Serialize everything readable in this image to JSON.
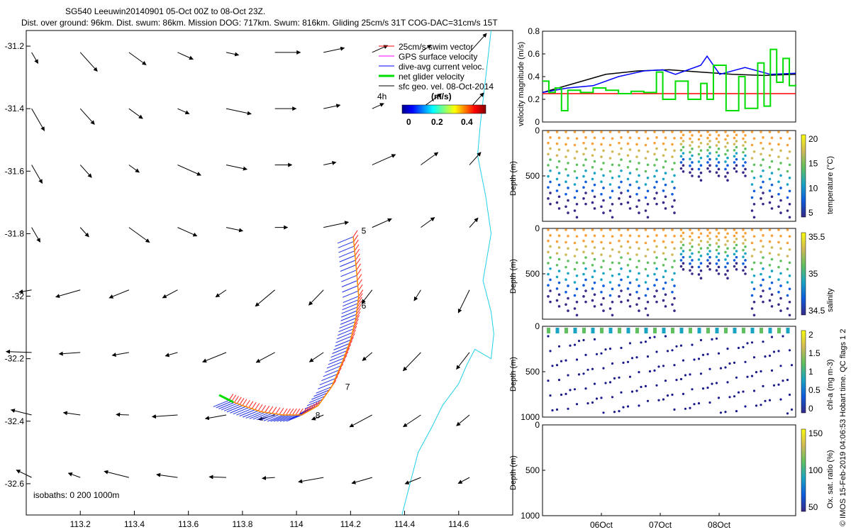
{
  "title": {
    "line1": "SG540 Leeuwin20140901 05-Oct 00Z to 08-Oct 23Z.",
    "line2": "Dist. over ground: 96km. Dist. swum: 86km. Mission DOG: 717km. Swum: 816km. Gliding 25cm/s 31T COG-DAC=31cm/s 15T"
  },
  "chart_data": [
    {
      "type": "map",
      "xlim": [
        113.0,
        114.8
      ],
      "ylim": [
        -32.7,
        -31.15
      ],
      "x_ticks": [
        "113.2",
        "113.4",
        "113.6",
        "113.8",
        "114",
        "114.2",
        "114.4",
        "114.6"
      ],
      "y_ticks": [
        "-31.2",
        "-31.4",
        "-31.6",
        "-31.8",
        "-32",
        "-32.2",
        "-32.4",
        "-32.6"
      ],
      "legend": [
        {
          "label": "25cm/s swim vector",
          "color": "#ff0000"
        },
        {
          "label": "GPS surface velocity",
          "color": "#ff00ff"
        },
        {
          "label": "dive-avg current veloc.",
          "color": "#0000ff"
        },
        {
          "label": "net glider velocity",
          "color": "#00dd00"
        },
        {
          "label": "sfc geo. vel. 08-Oct-2014",
          "color": "#000000"
        }
      ],
      "colorbar": {
        "label": "(m/s)",
        "time_label": "4h",
        "ticks": [
          "0",
          "0.2",
          "0.4"
        ],
        "range": [
          0,
          0.5
        ]
      },
      "isobaths_label": "isobaths: 0   200   1000m",
      "track_labels": [
        "5",
        "6",
        "7",
        "8"
      ],
      "track": [
        [
          114.21,
          -31.81
        ],
        [
          114.22,
          -31.9
        ],
        [
          114.23,
          -32.0
        ],
        [
          114.22,
          -32.07
        ],
        [
          114.2,
          -32.14
        ],
        [
          114.17,
          -32.21
        ],
        [
          114.13,
          -32.29
        ],
        [
          114.08,
          -32.35
        ],
        [
          114.02,
          -32.38
        ],
        [
          113.95,
          -32.38
        ],
        [
          113.87,
          -32.37
        ],
        [
          113.8,
          -32.35
        ],
        [
          113.74,
          -32.33
        ]
      ]
    },
    {
      "type": "line",
      "ylabel": "velocity magnitude (m/s)",
      "ylim": [
        0,
        0.8
      ],
      "y_ticks": [
        "0",
        "0.2",
        "0.4",
        "0.6",
        "0.8"
      ],
      "series": [
        {
          "color": "#ff0000",
          "values": [
            [
              0,
              0.25
            ],
            [
              4,
              0.25
            ]
          ]
        },
        {
          "color": "#000000",
          "values": [
            [
              0,
              0.26
            ],
            [
              0.5,
              0.34
            ],
            [
              1,
              0.42
            ],
            [
              1.5,
              0.45
            ],
            [
              2,
              0.46
            ],
            [
              2.5,
              0.44
            ],
            [
              3,
              0.42
            ],
            [
              3.5,
              0.41
            ],
            [
              4,
              0.42
            ]
          ]
        },
        {
          "color": "#0000ff",
          "values": [
            [
              0,
              0.26
            ],
            [
              0.4,
              0.3
            ],
            [
              0.8,
              0.32
            ],
            [
              1.2,
              0.4
            ],
            [
              1.6,
              0.45
            ],
            [
              1.9,
              0.46
            ],
            [
              2.1,
              0.42
            ],
            [
              2.5,
              0.5
            ],
            [
              2.6,
              0.58
            ],
            [
              2.8,
              0.42
            ],
            [
              3.2,
              0.48
            ],
            [
              3.6,
              0.42
            ],
            [
              4,
              0.43
            ]
          ]
        },
        {
          "color": "#00dd00",
          "values": [
            [
              0,
              0.36
            ],
            [
              0.1,
              0.26
            ],
            [
              0.2,
              0.3
            ],
            [
              0.3,
              0.1
            ],
            [
              0.4,
              0.28
            ],
            [
              0.6,
              0.26
            ],
            [
              0.8,
              0.3
            ],
            [
              1.0,
              0.28
            ],
            [
              1.2,
              0.25
            ],
            [
              1.4,
              0.27
            ],
            [
              1.6,
              0.26
            ],
            [
              1.8,
              0.44
            ],
            [
              1.9,
              0.2
            ],
            [
              2.1,
              0.36
            ],
            [
              2.3,
              0.2
            ],
            [
              2.5,
              0.34
            ],
            [
              2.6,
              0.2
            ],
            [
              2.7,
              0.5
            ],
            [
              2.9,
              0.1
            ],
            [
              3.1,
              0.4
            ],
            [
              3.2,
              0.12
            ],
            [
              3.4,
              0.52
            ],
            [
              3.5,
              0.14
            ],
            [
              3.6,
              0.64
            ],
            [
              3.7,
              0.35
            ],
            [
              3.8,
              0.56
            ],
            [
              3.9,
              0.32
            ],
            [
              4,
              0.33
            ]
          ]
        }
      ]
    },
    {
      "type": "scatter",
      "ylabel": "Depth (m)",
      "cbar_label": "temperature (°C)",
      "cbar_ticks": [
        "5",
        "10",
        "15",
        "20"
      ],
      "ylim": [
        0,
        1000
      ],
      "y_ticks": [
        "0",
        "500"
      ],
      "colormap": "parula"
    },
    {
      "type": "scatter",
      "ylabel": "Depth (m)",
      "cbar_label": "salinity",
      "cbar_ticks": [
        "34.5",
        "35",
        "35.5"
      ],
      "ylim": [
        0,
        1000
      ],
      "y_ticks": [
        "0",
        "500"
      ]
    },
    {
      "type": "scatter",
      "ylabel": "Depth (m)",
      "cbar_label": "chl-a (mg m-3)",
      "cbar_ticks": [
        "0",
        "0.5",
        "1",
        "1.5",
        "2"
      ],
      "ylim": [
        0,
        1000
      ],
      "y_ticks": [
        "0",
        "500",
        "1000"
      ]
    },
    {
      "type": "scatter",
      "ylabel": "Depth (m)",
      "cbar_label": "Ox. sat. ratio (%)",
      "cbar_ticks": [
        "50",
        "100",
        "150"
      ],
      "ylim": [
        0,
        1000
      ],
      "y_ticks": [
        "0",
        "500",
        "1000"
      ],
      "x_ticks": [
        "06Oct",
        "07Oct",
        "08Oct"
      ]
    }
  ],
  "footer": {
    "side_text": "© IMOS 15-Feb-2019 04:06:53 Hobart time. QC flags 1  2"
  }
}
